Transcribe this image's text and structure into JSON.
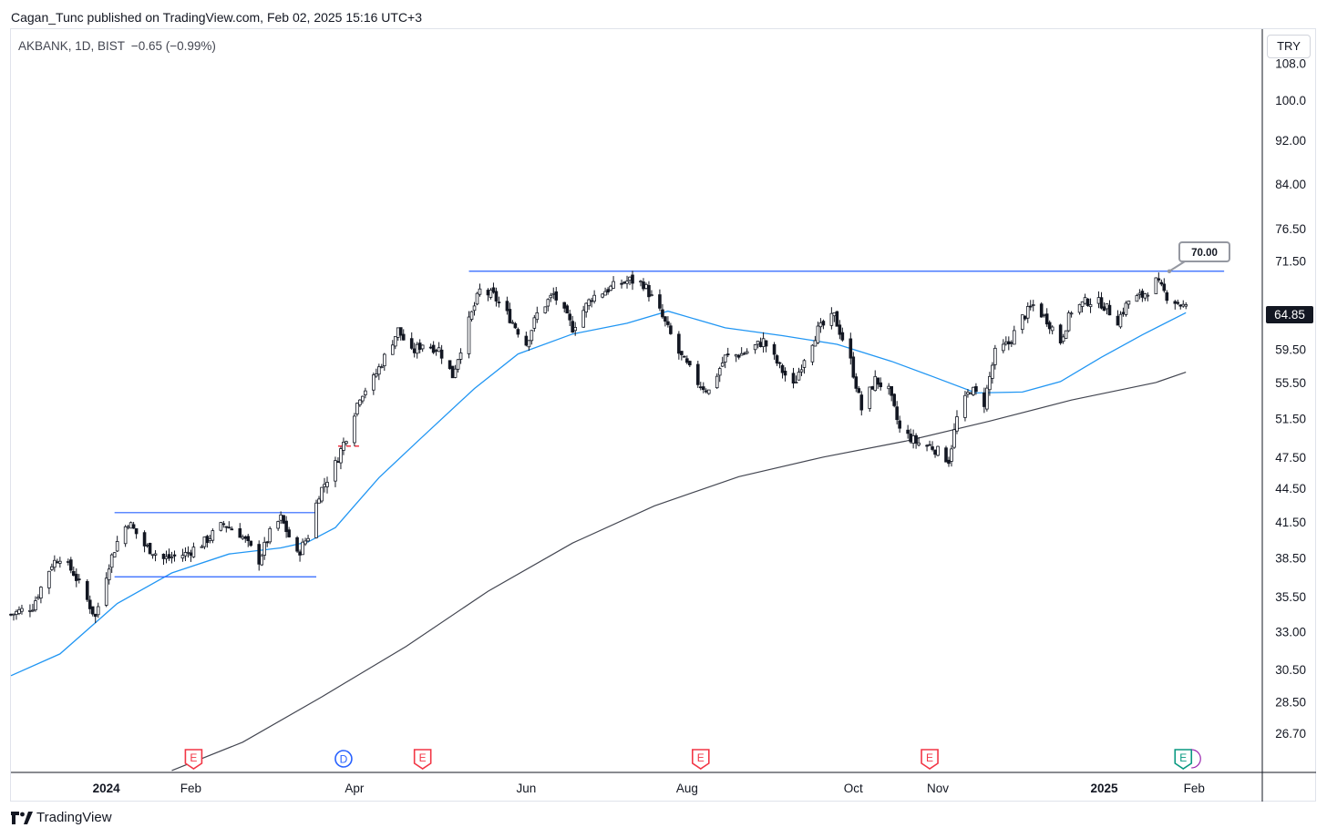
{
  "header": {
    "published_line": "Cagan_Tunc published on TradingView.com, Feb 02, 2025 15:16 UTC+3"
  },
  "legend": {
    "symbol": "AKBANK, 1D, BIST",
    "change": "−0.65 (−0.99%)"
  },
  "price_axis": {
    "currency": "TRY",
    "current_price": "64.85"
  },
  "callout_label": "70.00",
  "brand": {
    "name": "TradingView"
  },
  "colors": {
    "candle": "#131722",
    "ma_fast": "#2196f3",
    "ma_slow": "#434651",
    "level_lines": "#2962ff",
    "earnings_marker": "#f23645",
    "dividend_marker": "#2962ff",
    "upcoming_earnings_marker": "#089981",
    "entry_dash": "#f23645"
  },
  "chart_data": {
    "type": "candlestick",
    "symbol": "AKBANK",
    "interval": "1D",
    "exchange": "BIST",
    "y_scale": "log",
    "ylim": [
      24.6,
      116
    ],
    "y_ticks": [
      "108.0",
      "100.0",
      "92.00",
      "84.00",
      "76.50",
      "71.50",
      "64.85",
      "59.50",
      "55.50",
      "51.50",
      "47.50",
      "44.50",
      "41.50",
      "38.50",
      "35.50",
      "33.00",
      "30.50",
      "28.50",
      "26.70"
    ],
    "x_ticks": [
      {
        "label": "2024",
        "date": "2024-01-01",
        "bold": true
      },
      {
        "label": "Feb",
        "date": "2024-02-01"
      },
      {
        "label": "Apr",
        "date": "2024-04-01"
      },
      {
        "label": "Jun",
        "date": "2024-06-03"
      },
      {
        "label": "Aug",
        "date": "2024-08-01"
      },
      {
        "label": "Oct",
        "date": "2024-10-01"
      },
      {
        "label": "Nov",
        "date": "2024-11-01"
      },
      {
        "label": "2025",
        "date": "2025-01-01",
        "bold": true
      },
      {
        "label": "Feb",
        "date": "2025-02-03"
      }
    ],
    "x_range": [
      "2023-11-27",
      "2025-02-28"
    ],
    "price_path": [
      [
        "2023-11-27",
        34.2
      ],
      [
        "2023-12-05",
        34.8
      ],
      [
        "2023-12-12",
        38.0
      ],
      [
        "2023-12-15",
        38.6
      ],
      [
        "2023-12-20",
        37.3
      ],
      [
        "2023-12-28",
        34.0
      ],
      [
        "2024-01-02",
        38.0
      ],
      [
        "2024-01-05",
        39.8
      ],
      [
        "2024-01-09",
        41.5
      ],
      [
        "2024-01-15",
        39.5
      ],
      [
        "2024-01-22",
        38.4
      ],
      [
        "2024-01-30",
        38.8
      ],
      [
        "2024-02-06",
        39.8
      ],
      [
        "2024-02-13",
        41.3
      ],
      [
        "2024-02-19",
        40.5
      ],
      [
        "2024-02-26",
        38.3
      ],
      [
        "2024-03-01",
        40.5
      ],
      [
        "2024-03-05",
        41.8
      ],
      [
        "2024-03-11",
        38.7
      ],
      [
        "2024-03-15",
        40.3
      ],
      [
        "2024-03-19",
        44.0
      ],
      [
        "2024-03-25",
        46.8
      ],
      [
        "2024-03-29",
        49.6
      ],
      [
        "2024-04-03",
        54.0
      ],
      [
        "2024-04-08",
        55.9
      ],
      [
        "2024-04-12",
        58.5
      ],
      [
        "2024-04-17",
        61.9
      ],
      [
        "2024-04-22",
        59.0
      ],
      [
        "2024-04-26",
        60.2
      ],
      [
        "2024-05-02",
        59.5
      ],
      [
        "2024-05-07",
        56.3
      ],
      [
        "2024-05-13",
        63.0
      ],
      [
        "2024-05-17",
        67.2
      ],
      [
        "2024-05-22",
        66.5
      ],
      [
        "2024-05-28",
        63.5
      ],
      [
        "2024-06-03",
        60.2
      ],
      [
        "2024-06-07",
        64.0
      ],
      [
        "2024-06-13",
        66.7
      ],
      [
        "2024-06-20",
        62.2
      ],
      [
        "2024-06-27",
        66.3
      ],
      [
        "2024-07-05",
        67.8
      ],
      [
        "2024-07-11",
        68.7
      ],
      [
        "2024-07-16",
        68.2
      ],
      [
        "2024-07-22",
        64.3
      ],
      [
        "2024-07-29",
        59.0
      ],
      [
        "2024-08-05",
        55.5
      ],
      [
        "2024-08-09",
        54.5
      ],
      [
        "2024-08-15",
        58.5
      ],
      [
        "2024-08-22",
        59.0
      ],
      [
        "2024-08-29",
        60.5
      ],
      [
        "2024-09-04",
        57.3
      ],
      [
        "2024-09-09",
        55.0
      ],
      [
        "2024-09-13",
        58.5
      ],
      [
        "2024-09-18",
        61.9
      ],
      [
        "2024-09-24",
        63.7
      ],
      [
        "2024-09-30",
        58.0
      ],
      [
        "2024-10-04",
        52.5
      ],
      [
        "2024-10-09",
        55.8
      ],
      [
        "2024-10-14",
        54.5
      ],
      [
        "2024-10-18",
        50.3
      ],
      [
        "2024-10-24",
        49.0
      ],
      [
        "2024-10-30",
        48.5
      ],
      [
        "2024-11-05",
        47.2
      ],
      [
        "2024-11-08",
        51.5
      ],
      [
        "2024-11-13",
        54.8
      ],
      [
        "2024-11-18",
        53.2
      ],
      [
        "2024-11-22",
        59.0
      ],
      [
        "2024-11-27",
        60.2
      ],
      [
        "2024-12-02",
        63.5
      ],
      [
        "2024-12-06",
        65.2
      ],
      [
        "2024-12-11",
        63.3
      ],
      [
        "2024-12-16",
        60.5
      ],
      [
        "2024-12-20",
        64.5
      ],
      [
        "2024-12-26",
        65.8
      ],
      [
        "2024-12-31",
        65.5
      ],
      [
        "2025-01-06",
        63.2
      ],
      [
        "2025-01-10",
        65.8
      ],
      [
        "2025-01-15",
        66.5
      ],
      [
        "2025-01-20",
        68.5
      ],
      [
        "2025-01-24",
        66.5
      ],
      [
        "2025-01-31",
        64.85
      ]
    ],
    "moving_average_50": [
      [
        "2023-11-27",
        30.1
      ],
      [
        "2023-12-15",
        31.5
      ],
      [
        "2024-01-05",
        35.0
      ],
      [
        "2024-01-25",
        37.3
      ],
      [
        "2024-02-15",
        38.8
      ],
      [
        "2024-03-05",
        39.3
      ],
      [
        "2024-03-15",
        39.8
      ],
      [
        "2024-03-25",
        41.0
      ],
      [
        "2024-04-10",
        45.5
      ],
      [
        "2024-04-25",
        49.3
      ],
      [
        "2024-05-15",
        54.8
      ],
      [
        "2024-05-31",
        58.9
      ],
      [
        "2024-06-20",
        61.4
      ],
      [
        "2024-07-10",
        62.8
      ],
      [
        "2024-07-25",
        64.4
      ],
      [
        "2024-08-15",
        62.2
      ],
      [
        "2024-09-05",
        61.2
      ],
      [
        "2024-09-25",
        60.1
      ],
      [
        "2024-10-15",
        58.0
      ],
      [
        "2024-10-30",
        56.2
      ],
      [
        "2024-11-15",
        54.3
      ],
      [
        "2024-12-02",
        54.4
      ],
      [
        "2024-12-16",
        55.6
      ],
      [
        "2024-12-31",
        58.5
      ],
      [
        "2025-01-15",
        61.3
      ],
      [
        "2025-01-31",
        64.2
      ]
    ],
    "moving_average_200": [
      [
        "2024-01-25",
        24.7
      ],
      [
        "2024-02-20",
        26.2
      ],
      [
        "2024-03-20",
        28.8
      ],
      [
        "2024-04-20",
        32.0
      ],
      [
        "2024-05-20",
        35.9
      ],
      [
        "2024-06-20",
        39.7
      ],
      [
        "2024-07-20",
        42.9
      ],
      [
        "2024-08-20",
        45.6
      ],
      [
        "2024-09-20",
        47.5
      ],
      [
        "2024-10-20",
        49.1
      ],
      [
        "2024-11-20",
        51.2
      ],
      [
        "2024-12-20",
        53.5
      ],
      [
        "2025-01-20",
        55.5
      ],
      [
        "2025-01-31",
        56.7
      ]
    ],
    "horizontal_lines": [
      {
        "from": "2024-01-04",
        "to": "2024-03-18",
        "value": 42.3
      },
      {
        "from": "2024-01-04",
        "to": "2024-03-18",
        "value": 37.0
      },
      {
        "from": "2024-05-13",
        "to": "2025-02-14",
        "value": 70.0,
        "label": "70.00"
      }
    ],
    "entry_dash": {
      "from": "2024-03-26",
      "to": "2024-04-03",
      "value": 48.6
    },
    "markers": [
      {
        "type": "earnings",
        "letter": "E",
        "date": "2024-02-02"
      },
      {
        "type": "dividend",
        "letter": "D",
        "date": "2024-03-28"
      },
      {
        "type": "earnings",
        "letter": "E",
        "date": "2024-04-26"
      },
      {
        "type": "earnings",
        "letter": "E",
        "date": "2024-08-06"
      },
      {
        "type": "earnings",
        "letter": "E",
        "date": "2024-10-29"
      },
      {
        "type": "earnings_upcoming",
        "letter": "E",
        "date": "2025-01-30"
      }
    ]
  }
}
